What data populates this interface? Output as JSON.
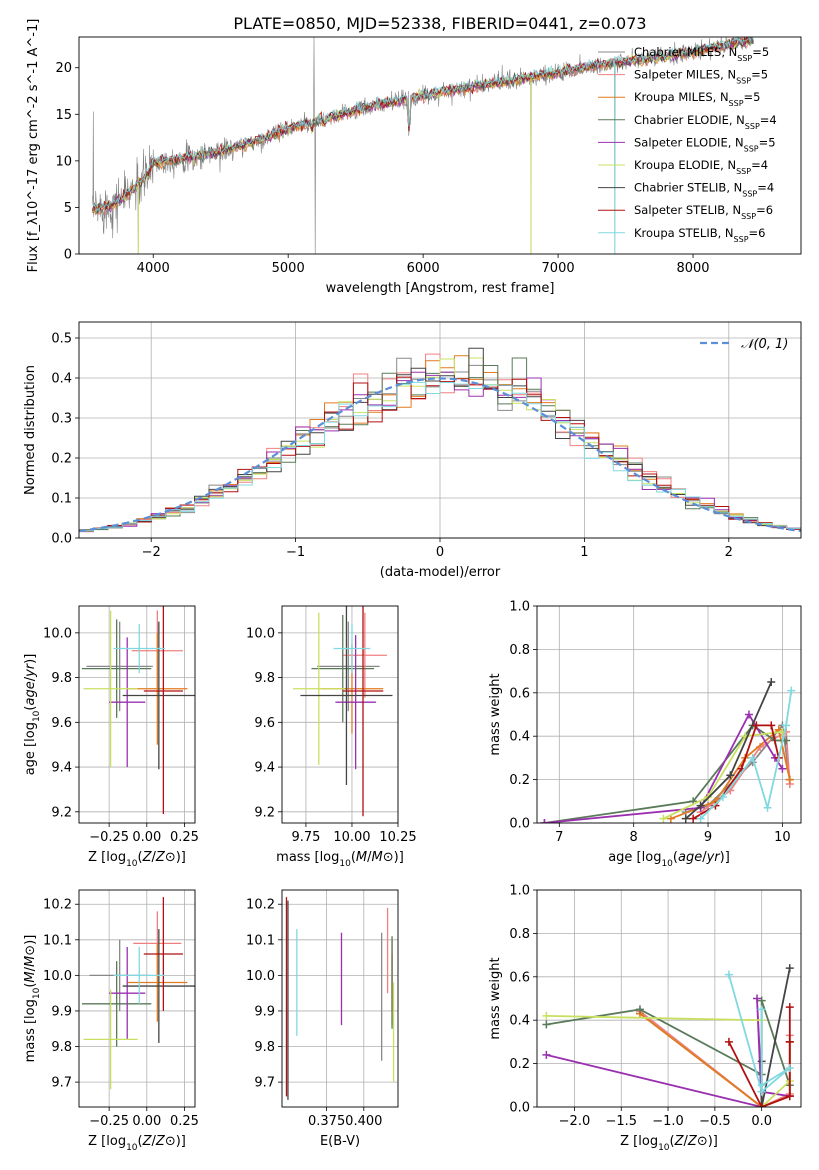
{
  "figure": {
    "title": "PLATE=0850, MJD=52338, FIBERID=0441, z=0.073"
  },
  "colors": {
    "data": "#808080",
    "models": [
      "#888888",
      "#f08080",
      "#e07b20",
      "#5a7a5a",
      "#9a30b0",
      "#c8e060",
      "#444444",
      "#b01010",
      "#80d8e0"
    ],
    "gauss": "#5b8fd8"
  },
  "chart_data": [
    {
      "id": "spectrum",
      "type": "line",
      "xlabel": "wavelength [Angstrom, rest frame]",
      "ylabel": "Flux [f_λ10^-17 erg cm^-2 s^-1 A^-1]",
      "xlim": [
        3450,
        8800
      ],
      "ylim": [
        0,
        23.3
      ],
      "xticks": [
        4000,
        5000,
        6000,
        7000,
        8000
      ],
      "yticks": [
        0,
        5,
        10,
        15,
        20
      ],
      "grid": false,
      "legend_position": "top-right",
      "legend": [
        {
          "base": "Chabrier MILES, N",
          "sub": "SSP",
          "tail": "=5"
        },
        {
          "base": "Salpeter MILES, N",
          "sub": "SSP",
          "tail": "=5"
        },
        {
          "base": "Kroupa MILES, N",
          "sub": "SSP",
          "tail": "=5"
        },
        {
          "base": "Chabrier ELODIE, N",
          "sub": "SSP",
          "tail": "=4"
        },
        {
          "base": "Salpeter ELODIE, N",
          "sub": "SSP",
          "tail": "=5"
        },
        {
          "base": "Kroupa ELODIE, N",
          "sub": "SSP",
          "tail": "=4"
        },
        {
          "base": "Chabrier STELIB, N",
          "sub": "SSP",
          "tail": "=4"
        },
        {
          "base": "Salpeter STELIB, N",
          "sub": "SSP",
          "tail": "=6"
        },
        {
          "base": "Kroupa STELIB, N",
          "sub": "SSP",
          "tail": "=6"
        }
      ],
      "continuum_knots": [
        [
          3550,
          4.8
        ],
        [
          3700,
          5.2
        ],
        [
          3900,
          7.5
        ],
        [
          4000,
          9.8
        ],
        [
          4200,
          10.2
        ],
        [
          4500,
          11.0
        ],
        [
          4800,
          12.3
        ],
        [
          5000,
          13.5
        ],
        [
          5300,
          14.6
        ],
        [
          5600,
          15.8
        ],
        [
          6000,
          17.0
        ],
        [
          6300,
          17.8
        ],
        [
          6600,
          18.5
        ],
        [
          6800,
          19.0
        ],
        [
          7000,
          19.5
        ],
        [
          7300,
          20.3
        ],
        [
          7600,
          20.8
        ],
        [
          7800,
          21.2
        ],
        [
          8000,
          21.7
        ],
        [
          8300,
          22.6
        ],
        [
          8600,
          23.3
        ]
      ],
      "spikes": [
        [
          3555,
          15.3
        ],
        [
          5190,
          23.3
        ],
        [
          5890,
          17.5
        ],
        [
          6560,
          19.7
        ],
        [
          6585,
          20.3
        ],
        [
          6720,
          20.0
        ]
      ],
      "dips": [
        [
          3890,
          0
        ],
        [
          5200,
          0
        ],
        [
          6800,
          0
        ],
        [
          7420,
          0
        ]
      ],
      "absorption": [
        [
          3935,
          8.0
        ],
        [
          3968,
          8.5
        ],
        [
          4300,
          9.8
        ],
        [
          5175,
          13.4
        ],
        [
          5270,
          14.0
        ],
        [
          5895,
          13.3
        ]
      ]
    },
    {
      "id": "residuals",
      "type": "histogram",
      "xlabel": "(data-model)/error",
      "ylabel": "Normed distribution",
      "xlim": [
        -2.5,
        2.5
      ],
      "ylim": [
        0,
        0.54
      ],
      "xticks": [
        -2,
        -1,
        0,
        1,
        2
      ],
      "yticks": [
        0.0,
        0.1,
        0.2,
        0.3,
        0.4,
        0.5
      ],
      "grid": true,
      "bins": 50,
      "legend_position": "top-right",
      "legend": [
        "𝒩(0, 1)"
      ],
      "spiky_bins": {
        "0.1": 0.51,
        "0.55": 0.45,
        "0.65": 0.4,
        "-0.55": 0.41,
        "-0.1": 0.45
      }
    },
    {
      "id": "age-vs-z",
      "type": "errorbar",
      "xlabel": "Z [log10(Z/Z⊙)]",
      "ylabel": "age [log10(age/yr)]",
      "xlim": [
        -0.45,
        0.32
      ],
      "ylim": [
        9.15,
        10.12
      ],
      "xticks": [
        -0.25,
        0.0,
        0.25
      ],
      "yticks": [
        9.2,
        9.4,
        9.6,
        9.8,
        10.0
      ],
      "grid": true,
      "points": [
        {
          "x": -0.18,
          "xerr": 0.22,
          "y": 9.85,
          "yerr": 0.2
        },
        {
          "x": 0.07,
          "xerr": 0.17,
          "y": 9.92,
          "yerr": 0.18
        },
        {
          "x": 0.07,
          "xerr": 0.2,
          "y": 9.75,
          "yerr": 0.25
        },
        {
          "x": -0.2,
          "xerr": 0.23,
          "y": 9.84,
          "yerr": 0.22
        },
        {
          "x": -0.13,
          "xerr": 0.12,
          "y": 9.69,
          "yerr": 0.29
        },
        {
          "x": -0.24,
          "xerr": 0.18,
          "y": 9.75,
          "yerr": 0.35
        },
        {
          "x": 0.08,
          "xerr": 0.24,
          "y": 9.72,
          "yerr": 0.33
        },
        {
          "x": 0.11,
          "xerr": 0.13,
          "y": 9.74,
          "yerr": 0.55
        },
        {
          "x": -0.05,
          "xerr": 0.17,
          "y": 9.93,
          "yerr": 0.11
        }
      ]
    },
    {
      "id": "age-vs-mass",
      "type": "errorbar",
      "xlabel": "mass [log10(M/M⊙)]",
      "ylabel": "",
      "xlim": [
        9.62,
        10.25
      ],
      "ylim": [
        9.15,
        10.12
      ],
      "xticks": [
        9.75,
        10.0,
        10.25
      ],
      "yticks": [
        9.2,
        9.4,
        9.6,
        9.8,
        10.0
      ],
      "grid": true,
      "points": [
        {
          "x": 9.98,
          "xerr": 0.17,
          "y": 9.85,
          "yerr": 0.2
        },
        {
          "x": 10.07,
          "xerr": 0.12,
          "y": 9.9,
          "yerr": 0.19
        },
        {
          "x": 10.0,
          "xerr": 0.17,
          "y": 9.75,
          "yerr": 0.2
        },
        {
          "x": 9.95,
          "xerr": 0.17,
          "y": 9.84,
          "yerr": 0.24
        },
        {
          "x": 10.02,
          "xerr": 0.11,
          "y": 9.69,
          "yerr": 0.3
        },
        {
          "x": 9.82,
          "xerr": 0.14,
          "y": 9.75,
          "yerr": 0.34
        },
        {
          "x": 9.97,
          "xerr": 0.25,
          "y": 9.72,
          "yerr": 0.4
        },
        {
          "x": 10.06,
          "xerr": 0.11,
          "y": 9.74,
          "yerr": 0.56
        },
        {
          "x": 10.0,
          "xerr": 0.1,
          "y": 9.93,
          "yerr": 0.11
        }
      ]
    },
    {
      "id": "weight-vs-age",
      "type": "line",
      "xlabel": "age  [log10(age/yr)]",
      "ylabel": "mass weight",
      "xlim": [
        6.7,
        10.25
      ],
      "ylim": [
        0,
        1.0
      ],
      "xticks": [
        7,
        8,
        9,
        10
      ],
      "yticks": [
        0.0,
        0.2,
        0.4,
        0.6,
        0.8,
        1.0
      ],
      "grid": true,
      "series": [
        {
          "points": [
            [
              8.7,
              0.05
            ],
            [
              9.0,
              0.08
            ],
            [
              9.6,
              0.28
            ],
            [
              10.0,
              0.45
            ],
            [
              10.1,
              0.2
            ]
          ]
        },
        {
          "points": [
            [
              8.9,
              0.05
            ],
            [
              9.3,
              0.15
            ],
            [
              9.7,
              0.35
            ],
            [
              10.05,
              0.42
            ],
            [
              10.1,
              0.18
            ]
          ]
        },
        {
          "points": [
            [
              8.5,
              0.02
            ],
            [
              9.1,
              0.1
            ],
            [
              9.5,
              0.3
            ],
            [
              9.95,
              0.43
            ],
            [
              10.1,
              0.2
            ]
          ]
        },
        {
          "points": [
            [
              6.8,
              0.0
            ],
            [
              8.8,
              0.1
            ],
            [
              9.6,
              0.45
            ],
            [
              9.9,
              0.38
            ],
            [
              10.05,
              0.38
            ]
          ]
        },
        {
          "points": [
            [
              6.8,
              0.0
            ],
            [
              8.9,
              0.07
            ],
            [
              9.55,
              0.5
            ],
            [
              9.9,
              0.3
            ],
            [
              10.0,
              0.25
            ]
          ]
        },
        {
          "points": [
            [
              8.4,
              0.02
            ],
            [
              9.0,
              0.12
            ],
            [
              9.5,
              0.4
            ],
            [
              10.0,
              0.42
            ]
          ]
        },
        {
          "points": [
            [
              8.7,
              0.02
            ],
            [
              8.9,
              0.08
            ],
            [
              9.3,
              0.22
            ],
            [
              9.85,
              0.65
            ]
          ]
        },
        {
          "points": [
            [
              8.8,
              0.02
            ],
            [
              9.1,
              0.08
            ],
            [
              9.45,
              0.25
            ],
            [
              9.65,
              0.45
            ],
            [
              9.85,
              0.45
            ],
            [
              9.95,
              0.3
            ]
          ]
        },
        {
          "points": [
            [
              8.9,
              0.02
            ],
            [
              9.2,
              0.12
            ],
            [
              9.6,
              0.3
            ],
            [
              9.8,
              0.07
            ],
            [
              10.05,
              0.45
            ],
            [
              10.12,
              0.61
            ]
          ]
        }
      ]
    },
    {
      "id": "mass-vs-z",
      "type": "errorbar",
      "xlabel": "Z [log10(Z/Z⊙)]",
      "ylabel": "mass [log10(M/M⊙)]",
      "xlim": [
        -0.45,
        0.32
      ],
      "ylim": [
        9.63,
        10.24
      ],
      "xticks": [
        -0.25,
        0.0,
        0.25
      ],
      "yticks": [
        9.7,
        9.8,
        9.9,
        10.0,
        10.1,
        10.2
      ],
      "grid": true,
      "points": [
        {
          "x": -0.18,
          "xerr": 0.2,
          "y": 10.0,
          "yerr": 0.1
        },
        {
          "x": 0.07,
          "xerr": 0.16,
          "y": 10.09,
          "yerr": 0.09
        },
        {
          "x": 0.07,
          "xerr": 0.2,
          "y": 9.98,
          "yerr": 0.11
        },
        {
          "x": -0.2,
          "xerr": 0.23,
          "y": 9.92,
          "yerr": 0.12
        },
        {
          "x": -0.13,
          "xerr": 0.12,
          "y": 9.95,
          "yerr": 0.13
        },
        {
          "x": -0.24,
          "xerr": 0.18,
          "y": 9.82,
          "yerr": 0.14
        },
        {
          "x": 0.08,
          "xerr": 0.24,
          "y": 9.97,
          "yerr": 0.16
        },
        {
          "x": 0.11,
          "xerr": 0.13,
          "y": 10.06,
          "yerr": 0.16
        },
        {
          "x": -0.05,
          "xerr": 0.17,
          "y": 10.0,
          "yerr": 0.08
        }
      ]
    },
    {
      "id": "mass-vs-ebv",
      "type": "errorbar",
      "xlabel": "E(B-V)",
      "ylabel": "",
      "xlim": [
        0.345,
        0.423
      ],
      "ylim": [
        9.63,
        10.24
      ],
      "xticks": [
        0.375,
        0.4
      ],
      "yticks": [
        9.7,
        9.8,
        9.9,
        10.0,
        10.1,
        10.2
      ],
      "grid": true,
      "points": [
        {
          "x": 0.419,
          "y": 10.0,
          "yerr": 0.1
        },
        {
          "x": 0.416,
          "y": 10.07,
          "yerr": 0.12
        },
        {
          "x": 0.419,
          "y": 9.96,
          "yerr": 0.1
        },
        {
          "x": 0.419,
          "y": 9.98,
          "yerr": 0.13
        },
        {
          "x": 0.385,
          "y": 9.99,
          "yerr": 0.13
        },
        {
          "x": 0.42,
          "y": 9.84,
          "yerr": 0.14
        },
        {
          "x": 0.349,
          "y": 9.93,
          "yerr": 0.28
        },
        {
          "x": 0.348,
          "y": 9.94,
          "yerr": 0.28
        },
        {
          "x": 0.355,
          "y": 9.98,
          "yerr": 0.15
        },
        {
          "x": 0.412,
          "y": 9.94,
          "yerr": 0.18
        }
      ],
      "point_colors": [
        1,
        1,
        2,
        3,
        4,
        5,
        6,
        7,
        8,
        0
      ]
    },
    {
      "id": "weight-vs-z",
      "type": "line",
      "xlabel": "Z [log10(Z/Z⊙)]",
      "ylabel": "mass weight",
      "xlim": [
        -2.4,
        0.42
      ],
      "ylim": [
        0,
        1.0
      ],
      "xticks": [
        -2.0,
        -1.5,
        -1.0,
        -0.5,
        0.0
      ],
      "yticks": [
        0.0,
        0.2,
        0.4,
        0.6,
        0.8,
        1.0
      ],
      "grid": true,
      "series": [
        {
          "points": [
            [
              -1.3,
              0.44
            ],
            [
              0.0,
              0.0
            ],
            [
              0.3,
              0.05
            ],
            [
              0.3,
              0.3
            ]
          ]
        },
        {
          "points": [
            [
              -1.3,
              0.44
            ],
            [
              0.0,
              0.0
            ],
            [
              0.3,
              0.06
            ],
            [
              0.3,
              0.33
            ]
          ]
        },
        {
          "points": [
            [
              -1.3,
              0.43
            ],
            [
              0.0,
              0.0
            ],
            [
              0.3,
              0.05
            ],
            [
              0.3,
              0.3
            ]
          ]
        },
        {
          "points": [
            [
              -2.3,
              0.38
            ],
            [
              -1.3,
              0.45
            ],
            [
              0.0,
              0.15
            ],
            [
              0.0,
              0.49
            ],
            [
              0.3,
              0.1
            ]
          ]
        },
        {
          "points": [
            [
              -2.3,
              0.24
            ],
            [
              0.0,
              0.0
            ],
            [
              -0.05,
              0.5
            ],
            [
              0.0,
              0.07
            ],
            [
              0.3,
              0.05
            ]
          ]
        },
        {
          "points": [
            [
              -2.3,
              0.42
            ],
            [
              0.0,
              0.4
            ],
            [
              0.0,
              0.0
            ],
            [
              0.3,
              0.12
            ]
          ]
        },
        {
          "points": [
            [
              0.0,
              0.21
            ],
            [
              0.0,
              0.0
            ],
            [
              0.3,
              0.64
            ]
          ]
        },
        {
          "points": [
            [
              -0.35,
              0.3
            ],
            [
              0.0,
              0.0
            ],
            [
              0.3,
              0.05
            ],
            [
              0.3,
              0.46
            ],
            [
              0.3,
              0.3
            ]
          ]
        },
        {
          "points": [
            [
              -0.35,
              0.61
            ],
            [
              0.0,
              0.07
            ],
            [
              0.3,
              0.18
            ],
            [
              0.0,
              0.1
            ],
            [
              0.0,
              0.45
            ]
          ]
        }
      ]
    }
  ]
}
